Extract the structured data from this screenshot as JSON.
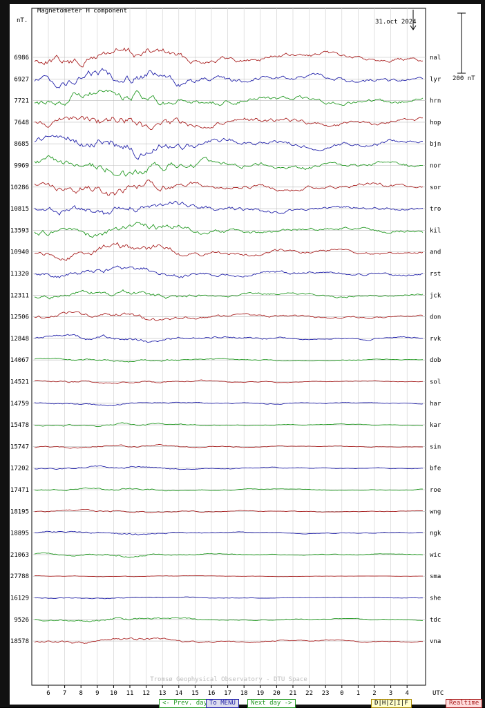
{
  "chart_data": {
    "type": "line",
    "title": "Magnetometer H component",
    "unit_label": "nT.",
    "date_label": "31.oct 2024",
    "scale_label": "200 nT",
    "footer": "Tromsø Geophysical Observatory - DTU Space",
    "x_ticks": [
      "6",
      "7",
      "8",
      "9",
      "10",
      "11",
      "12",
      "13",
      "14",
      "15",
      "16",
      "17",
      "18",
      "19",
      "20",
      "21",
      "22",
      "23",
      "0",
      "1",
      "2",
      "3",
      "4"
    ],
    "x_unit": "UTC",
    "colors": {
      "red": "#aa2222",
      "blue": "#2222aa",
      "green": "#229922"
    },
    "stations": [
      {
        "code": "nal",
        "baseline": "6986",
        "color": "red",
        "amp": 1.0
      },
      {
        "code": "lyr",
        "baseline": "6927",
        "color": "blue",
        "amp": 1.0
      },
      {
        "code": "hrn",
        "baseline": "7721",
        "color": "green",
        "amp": 1.0
      },
      {
        "code": "hop",
        "baseline": "7648",
        "color": "red",
        "amp": 1.0
      },
      {
        "code": "bjn",
        "baseline": "8685",
        "color": "blue",
        "amp": 1.0
      },
      {
        "code": "nor",
        "baseline": "9969",
        "color": "green",
        "amp": 0.95
      },
      {
        "code": "sor",
        "baseline": "10286",
        "color": "red",
        "amp": 0.9
      },
      {
        "code": "tro",
        "baseline": "10815",
        "color": "blue",
        "amp": 0.85
      },
      {
        "code": "kil",
        "baseline": "13593",
        "color": "green",
        "amp": 0.8
      },
      {
        "code": "and",
        "baseline": "10940",
        "color": "red",
        "amp": 0.75
      },
      {
        "code": "rst",
        "baseline": "11320",
        "color": "blue",
        "amp": 0.6
      },
      {
        "code": "jck",
        "baseline": "12311",
        "color": "green",
        "amp": 0.5
      },
      {
        "code": "don",
        "baseline": "12506",
        "color": "red",
        "amp": 0.45
      },
      {
        "code": "rvk",
        "baseline": "12848",
        "color": "blue",
        "amp": 0.4
      },
      {
        "code": "dob",
        "baseline": "14067",
        "color": "green",
        "amp": 0.22
      },
      {
        "code": "sol",
        "baseline": "14521",
        "color": "red",
        "amp": 0.2
      },
      {
        "code": "har",
        "baseline": "14759",
        "color": "blue",
        "amp": 0.2
      },
      {
        "code": "kar",
        "baseline": "15478",
        "color": "green",
        "amp": 0.18
      },
      {
        "code": "sin",
        "baseline": "15747",
        "color": "red",
        "amp": 0.18
      },
      {
        "code": "bfe",
        "baseline": "17202",
        "color": "blue",
        "amp": 0.18
      },
      {
        "code": "roe",
        "baseline": "17471",
        "color": "green",
        "amp": 0.18
      },
      {
        "code": "wng",
        "baseline": "18195",
        "color": "red",
        "amp": 0.18
      },
      {
        "code": "ngk",
        "baseline": "18895",
        "color": "blue",
        "amp": 0.18
      },
      {
        "code": "wic",
        "baseline": "21063",
        "color": "green",
        "amp": 0.18
      },
      {
        "code": "sma",
        "baseline": "27788",
        "color": "red",
        "amp": 0.06
      },
      {
        "code": "she",
        "baseline": "16129",
        "color": "blue",
        "amp": 0.12
      },
      {
        "code": "tdc",
        "baseline": "9526",
        "color": "green",
        "amp": 0.22
      },
      {
        "code": "vna",
        "baseline": "18578",
        "color": "red",
        "amp": 0.3
      }
    ]
  },
  "nav": {
    "prev": "<- Prev. day",
    "menu": "To MENU",
    "next": "Next day ->",
    "dhzif": "D|H|Z|I|F",
    "realtime": "Realtime"
  }
}
